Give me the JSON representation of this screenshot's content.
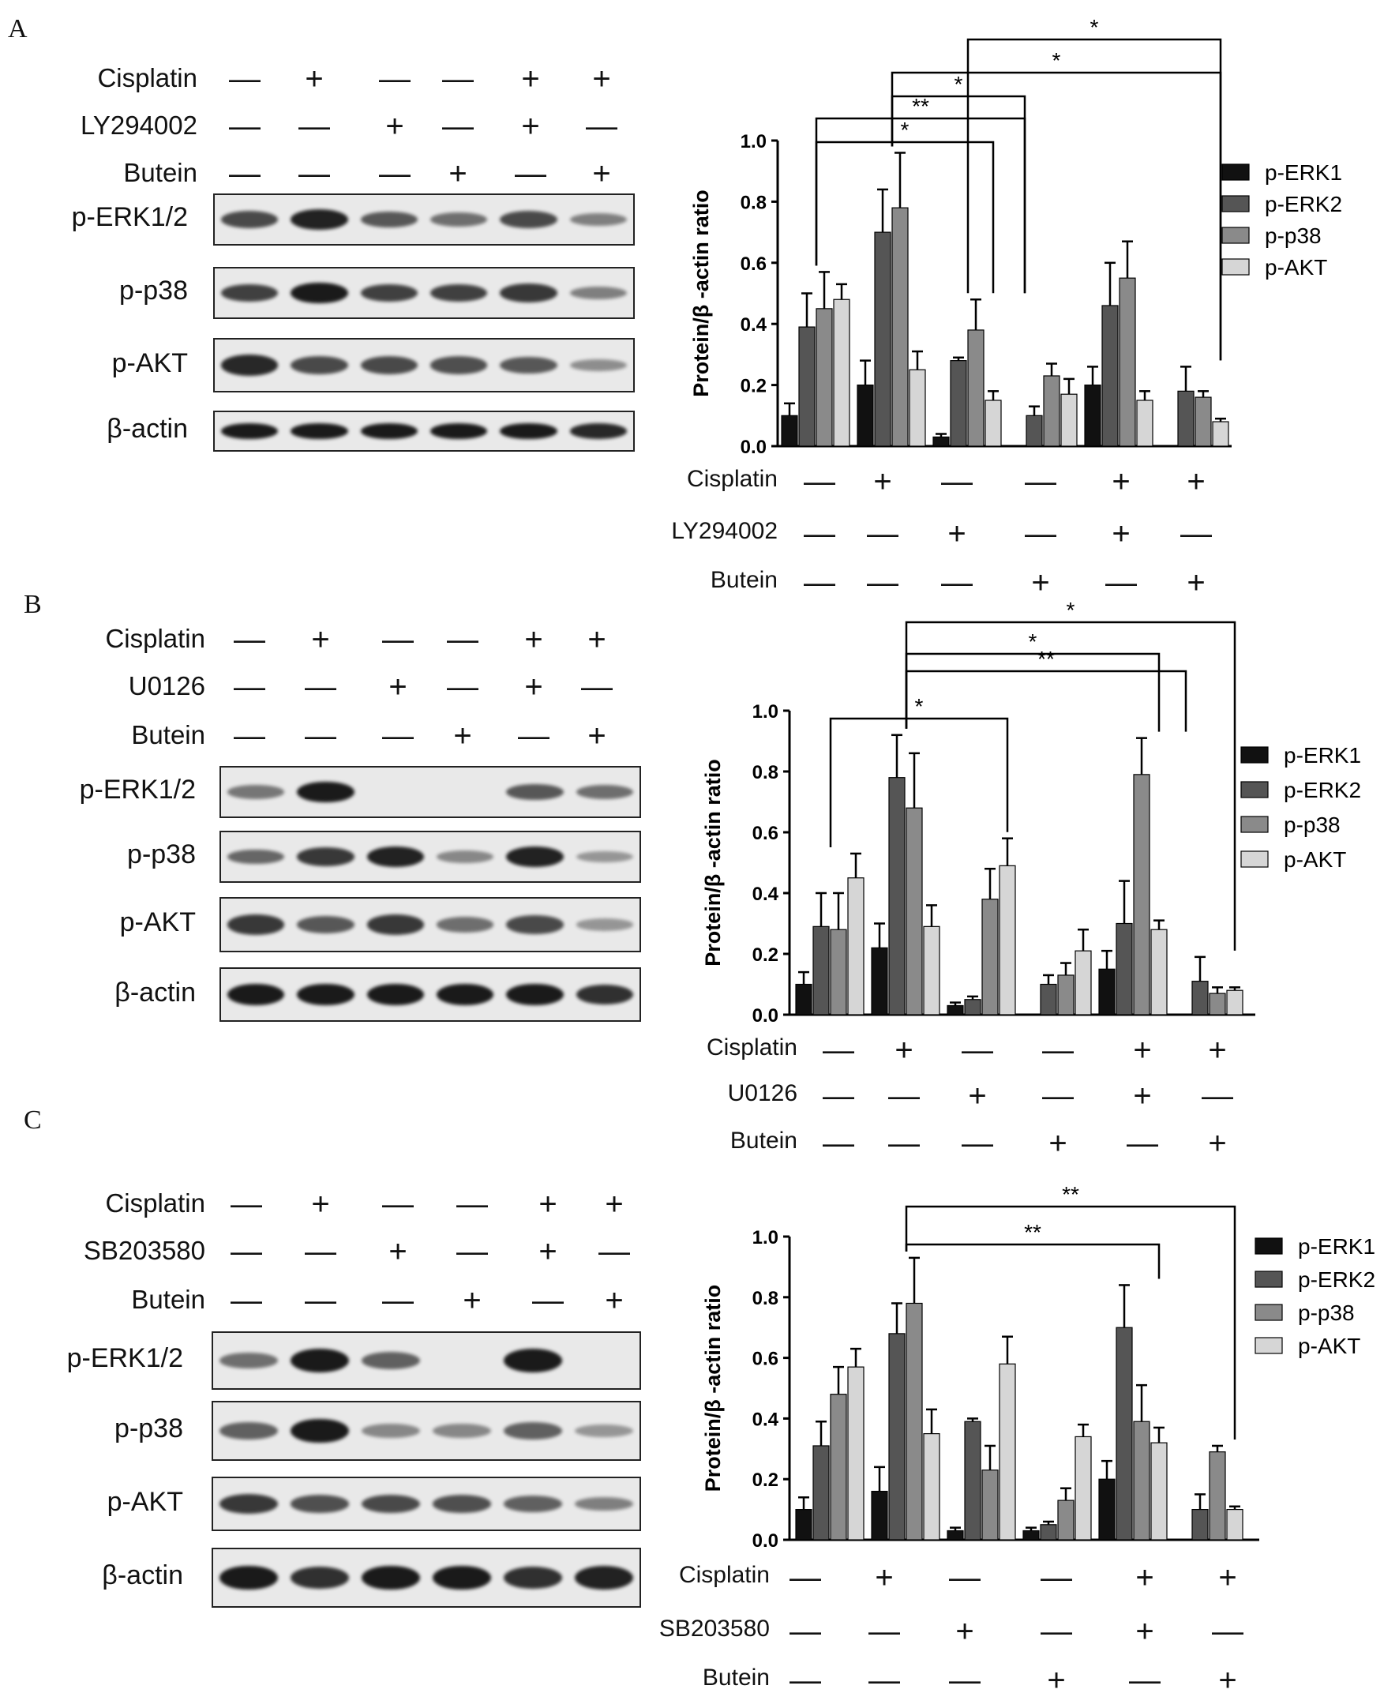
{
  "treatment_signs": {
    "cisplatin": [
      "—",
      "+",
      "—",
      "—",
      "+",
      "+"
    ],
    "inhibitor": [
      "—",
      "—",
      "+",
      "—",
      "+",
      "—"
    ],
    "butein": [
      "—",
      "—",
      "—",
      "+",
      "—",
      "+"
    ]
  },
  "colors": {
    "p-ERK1": "#111111",
    "p-ERK2": "#555555",
    "p-p38": "#8a8a8a",
    "p-AKT": "#d6d6d6"
  },
  "panels": [
    {
      "letter": "A",
      "labels": {
        "cisplatin": "Cisplatin",
        "inhibitor": "LY294002",
        "butein": "Butein"
      },
      "blots": [
        "p-ERK1/2",
        "p-p38",
        "p-AKT",
        "β-actin"
      ],
      "significance": [
        "*",
        "**",
        "*",
        "*",
        "*"
      ],
      "chart_data": {
        "type": "bar",
        "ylabel": "Protein/β -actin ratio",
        "ylim": [
          0,
          1.0
        ],
        "yticks": [
          "0.0",
          "0.2",
          "0.4",
          "0.6",
          "0.8",
          "1.0"
        ],
        "legend_position": "right",
        "series": [
          {
            "name": "p-ERK1",
            "values": [
              0.1,
              0.2,
              0.03,
              0,
              0.2,
              0
            ],
            "errors": [
              0.04,
              0.08,
              0.01,
              0,
              0.06,
              0
            ]
          },
          {
            "name": "p-ERK2",
            "values": [
              0.39,
              0.7,
              0.28,
              0.1,
              0.46,
              0.18
            ],
            "errors": [
              0.11,
              0.14,
              0.01,
              0.03,
              0.14,
              0.08
            ]
          },
          {
            "name": "p-p38",
            "values": [
              0.45,
              0.78,
              0.38,
              0.23,
              0.55,
              0.16
            ],
            "errors": [
              0.12,
              0.18,
              0.1,
              0.04,
              0.12,
              0.02
            ]
          },
          {
            "name": "p-AKT",
            "values": [
              0.48,
              0.25,
              0.15,
              0.17,
              0.15,
              0.08
            ],
            "errors": [
              0.05,
              0.06,
              0.03,
              0.05,
              0.03,
              0.01
            ]
          }
        ]
      }
    },
    {
      "letter": "B",
      "labels": {
        "cisplatin": "Cisplatin",
        "inhibitor": "U0126",
        "butein": "Butein"
      },
      "blots": [
        "p-ERK1/2",
        "p-p38",
        "p-AKT",
        "β-actin"
      ],
      "significance": [
        "*",
        "**",
        "*",
        "*"
      ],
      "chart_data": {
        "type": "bar",
        "ylabel": "Protein/β -actin  ratio",
        "ylim": [
          0,
          1.0
        ],
        "yticks": [
          "0.0",
          "0.2",
          "0.4",
          "0.6",
          "0.8",
          "1.0"
        ],
        "legend_position": "right",
        "series": [
          {
            "name": "p-ERK1",
            "values": [
              0.1,
              0.22,
              0.03,
              0,
              0.15,
              0
            ],
            "errors": [
              0.04,
              0.08,
              0.01,
              0,
              0.06,
              0
            ]
          },
          {
            "name": "p-ERK2",
            "values": [
              0.29,
              0.78,
              0.05,
              0.1,
              0.3,
              0.11
            ],
            "errors": [
              0.11,
              0.14,
              0.01,
              0.03,
              0.14,
              0.08
            ]
          },
          {
            "name": "p-p38",
            "values": [
              0.28,
              0.68,
              0.38,
              0.13,
              0.79,
              0.07
            ],
            "errors": [
              0.12,
              0.18,
              0.1,
              0.04,
              0.12,
              0.02
            ]
          },
          {
            "name": "p-AKT",
            "values": [
              0.45,
              0.29,
              0.49,
              0.21,
              0.28,
              0.08
            ],
            "errors": [
              0.08,
              0.07,
              0.09,
              0.07,
              0.03,
              0.01
            ]
          }
        ]
      }
    },
    {
      "letter": "C",
      "labels": {
        "cisplatin": "Cisplatin",
        "inhibitor": "SB203580",
        "butein": "Butein"
      },
      "blots": [
        "p-ERK1/2",
        "p-p38",
        "p-AKT",
        "β-actin"
      ],
      "significance": [
        "**",
        "**"
      ],
      "chart_data": {
        "type": "bar",
        "ylabel": "Protein/β -actin ratio",
        "ylim": [
          0,
          1.0
        ],
        "yticks": [
          "0.0",
          "0.2",
          "0.4",
          "0.6",
          "0.8",
          "1.0"
        ],
        "legend_position": "right",
        "series": [
          {
            "name": "p-ERK1",
            "values": [
              0.1,
              0.16,
              0.03,
              0.03,
              0.2,
              0
            ],
            "errors": [
              0.04,
              0.08,
              0.01,
              0.01,
              0.06,
              0
            ]
          },
          {
            "name": "p-ERK2",
            "values": [
              0.31,
              0.68,
              0.39,
              0.05,
              0.7,
              0.1
            ],
            "errors": [
              0.08,
              0.1,
              0.01,
              0.01,
              0.14,
              0.05
            ]
          },
          {
            "name": "p-p38",
            "values": [
              0.48,
              0.78,
              0.23,
              0.13,
              0.39,
              0.29
            ],
            "errors": [
              0.09,
              0.15,
              0.08,
              0.04,
              0.12,
              0.02
            ]
          },
          {
            "name": "p-AKT",
            "values": [
              0.57,
              0.35,
              0.58,
              0.34,
              0.32,
              0.1
            ],
            "errors": [
              0.06,
              0.08,
              0.09,
              0.04,
              0.05,
              0.01
            ]
          }
        ]
      }
    }
  ]
}
